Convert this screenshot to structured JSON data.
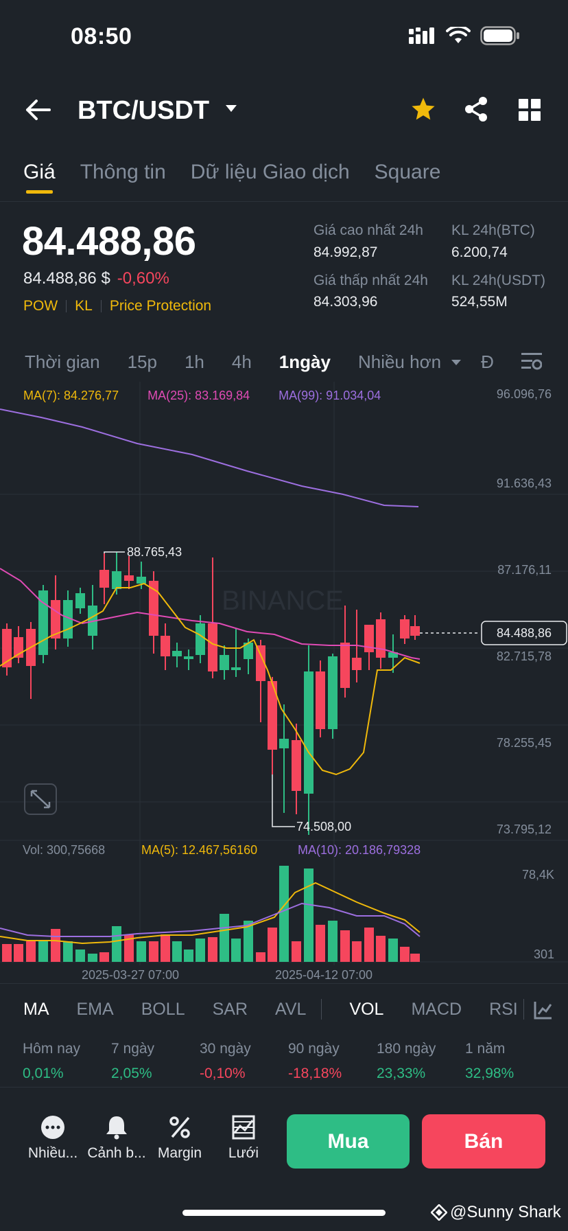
{
  "status": {
    "time": "08:50"
  },
  "header": {
    "pair": "BTC/USDT"
  },
  "tabs": [
    {
      "label": "Giá",
      "active": true
    },
    {
      "label": "Thông tin",
      "active": false
    },
    {
      "label": "Dữ liệu Giao dịch",
      "active": false
    },
    {
      "label": "Square",
      "active": false
    }
  ],
  "price": {
    "last": "84.488,86",
    "usd": "84.488,86 $",
    "change": "-0,60%",
    "tags": [
      "POW",
      "KL",
      "Price Protection"
    ]
  },
  "stats": {
    "high_label": "Giá cao nhất 24h",
    "high_value": "84.992,87",
    "low_label": "Giá thấp nhất 24h",
    "low_value": "84.303,96",
    "vol_btc_label": "KL 24h(BTC)",
    "vol_btc_value": "6.200,74",
    "vol_usdt_label": "KL 24h(USDT)",
    "vol_usdt_value": "524,55M"
  },
  "intervals": {
    "items": [
      "Thời gian",
      "15p",
      "1h",
      "4h",
      "1ngày",
      "Nhiều hơn"
    ],
    "active": "1ngày",
    "partial": "Đ"
  },
  "chart": {
    "ma7": "MA(7): 84.276,77",
    "ma25": "MA(25): 83.169,84",
    "ma99": "MA(99): 91.034,04",
    "y_ticks": [
      "96.096,76",
      "91.636,43",
      "87.176,11",
      "82.715,78",
      "78.255,45",
      "73.795,12"
    ],
    "current_price": "84.488,86",
    "high_marker": "88.765,43",
    "low_marker": "74.508,00",
    "watermark": "BINANCE",
    "vol_label": "Vol: 300,75668",
    "vol_ma5": "MA(5): 12.467,56160",
    "vol_ma10": "MA(10): 20.186,79328",
    "vol_ticks": [
      "78,4K",
      "301"
    ],
    "x_labels": [
      "2025-03-27 07:00",
      "2025-04-12 07:00"
    ],
    "colors": {
      "up": "#2ebd85",
      "down": "#f6465d",
      "ma7": "#f0b90b",
      "ma25": "#e04bb5",
      "ma99": "#9d6fe0"
    }
  },
  "indicators": {
    "main": [
      "MA",
      "EMA",
      "BOLL",
      "SAR",
      "AVL"
    ],
    "sub": [
      "VOL",
      "MACD",
      "RSI"
    ],
    "active_main": "MA",
    "active_sub": "VOL"
  },
  "performance": [
    {
      "label": "Hôm nay",
      "value": "0,01%",
      "dir": "up"
    },
    {
      "label": "7 ngày",
      "value": "2,05%",
      "dir": "up"
    },
    {
      "label": "30 ngày",
      "value": "-0,10%",
      "dir": "down"
    },
    {
      "label": "90 ngày",
      "value": "-18,18%",
      "dir": "down"
    },
    {
      "label": "180 ngày",
      "value": "23,33%",
      "dir": "up"
    },
    {
      "label": "1 năm",
      "value": "32,98%",
      "dir": "up"
    }
  ],
  "bottom": {
    "more": "Nhiều...",
    "alert": "Cảnh b...",
    "margin": "Margin",
    "grid": "Lưới",
    "buy": "Mua",
    "sell": "Bán"
  },
  "watermark_text": "@Sunny Shark"
}
